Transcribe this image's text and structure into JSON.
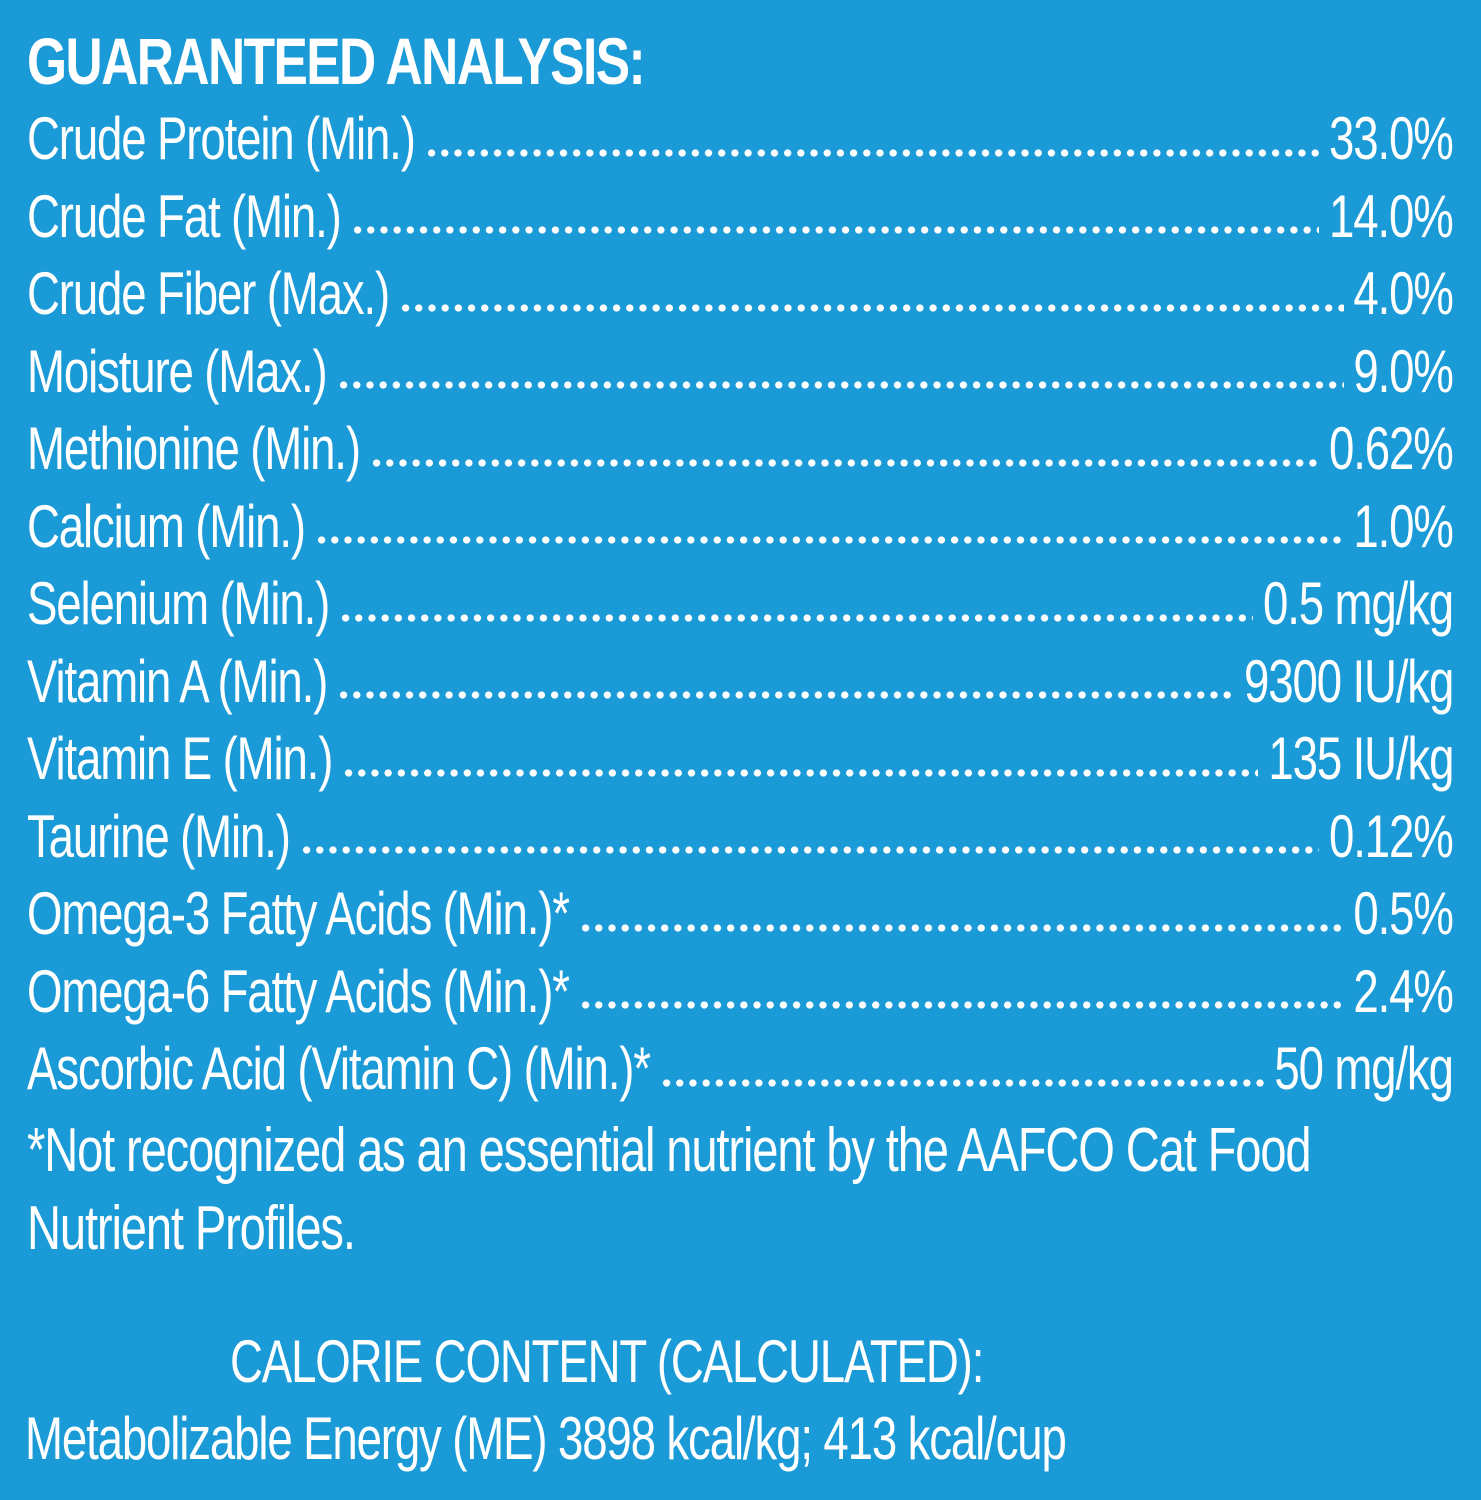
{
  "guaranteed_analysis": {
    "title": "GUARANTEED ANALYSIS:",
    "rows": [
      {
        "label": "Crude Protein (Min.)",
        "value": "33.0%"
      },
      {
        "label": "Crude Fat (Min.)",
        "value": "14.0%"
      },
      {
        "label": "Crude Fiber (Max.)",
        "value": "4.0%"
      },
      {
        "label": "Moisture (Max.)",
        "value": "9.0%"
      },
      {
        "label": "Methionine (Min.)",
        "value": "0.62%"
      },
      {
        "label": "Calcium (Min.)",
        "value": "1.0%"
      },
      {
        "label": "Selenium (Min.)",
        "value": "0.5 mg/kg"
      },
      {
        "label": "Vitamin A (Min.)",
        "value": "9300 IU/kg"
      },
      {
        "label": "Vitamin E (Min.)",
        "value": "135 IU/kg"
      },
      {
        "label": "Taurine (Min.)",
        "value": "0.12%"
      },
      {
        "label": "Omega-3 Fatty Acids (Min.)*",
        "value": "0.5%"
      },
      {
        "label": "Omega-6 Fatty Acids (Min.)*",
        "value": "2.4%"
      },
      {
        "label": "Ascorbic Acid (Vitamin C) (Min.)*",
        "value": "50 mg/kg"
      }
    ],
    "footnote_line1": "*Not recognized as an essential nutrient by the AAFCO Cat Food",
    "footnote_line2": "Nutrient Profiles."
  },
  "calorie_content": {
    "title": "CALORIE CONTENT (CALCULATED):",
    "text": "Metabolizable Energy (ME) 3898 kcal/kg; 413 kcal/cup"
  },
  "colors": {
    "background": "#1a9ad6",
    "text": "#ffffff"
  }
}
